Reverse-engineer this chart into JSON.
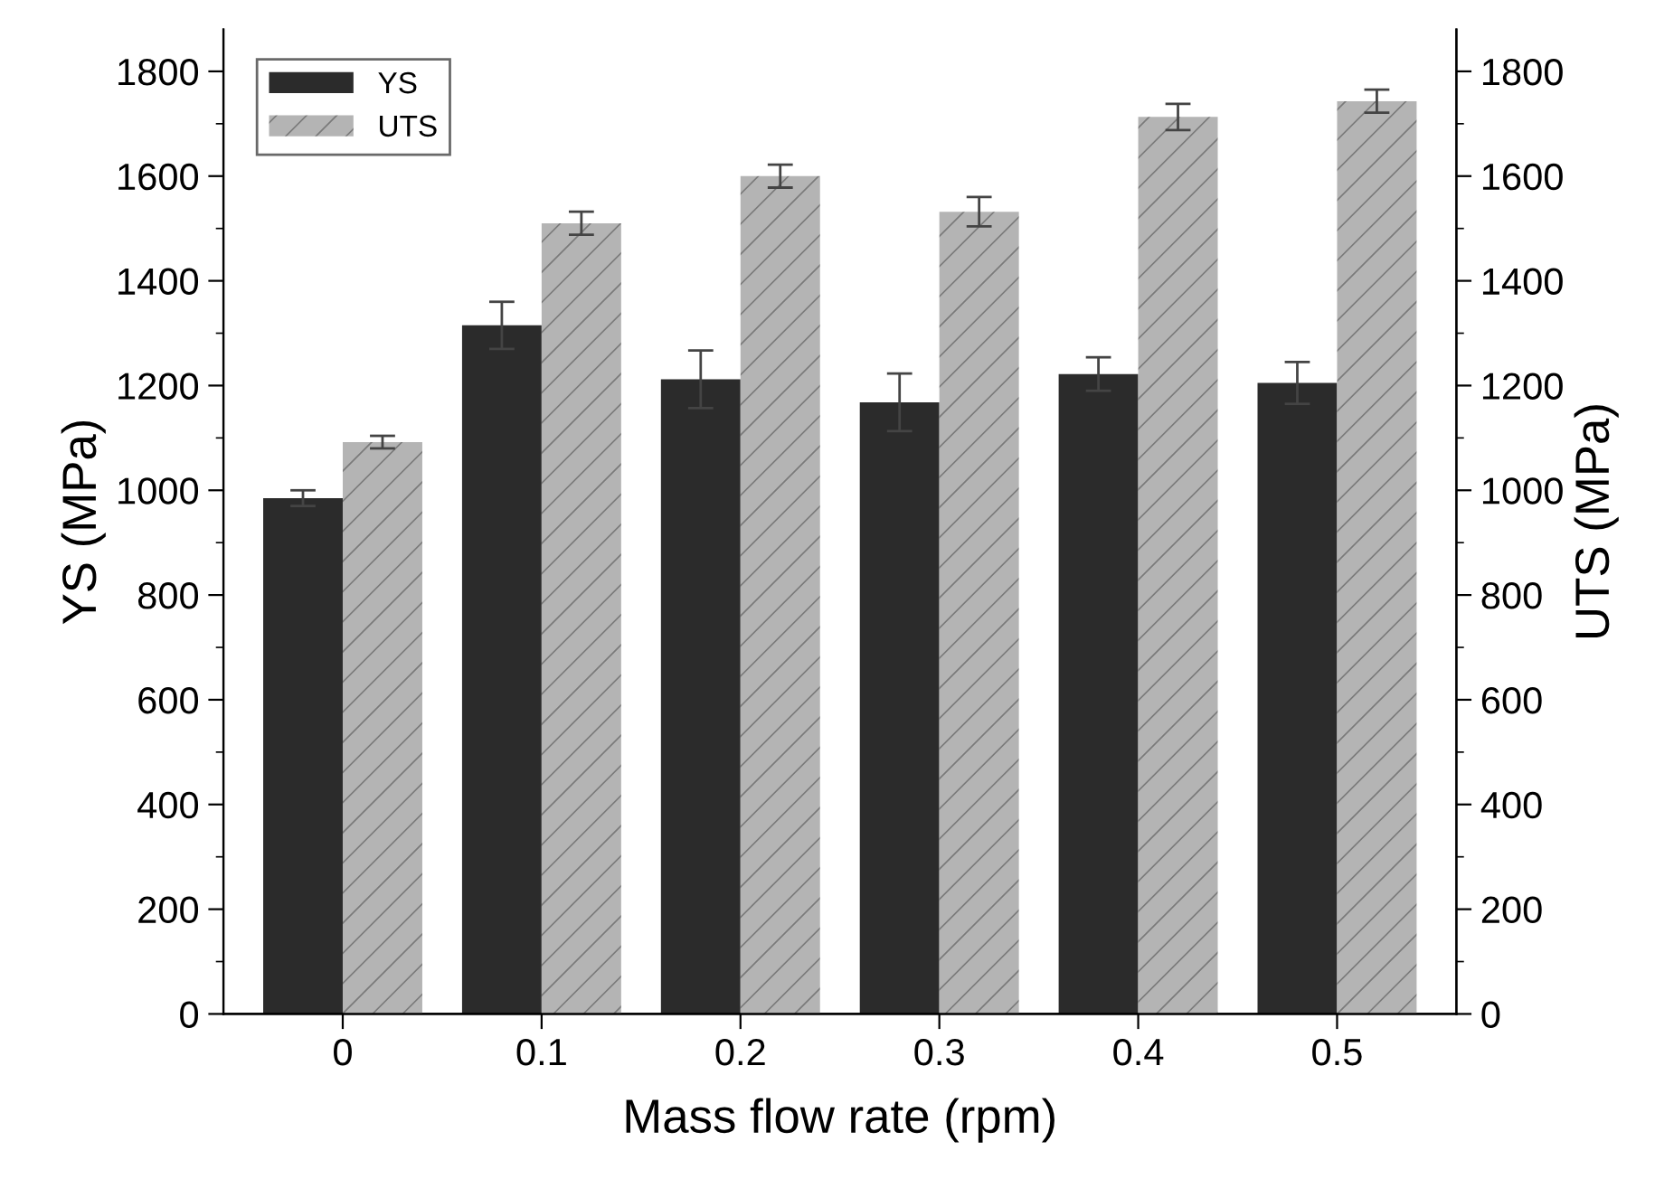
{
  "chart_data": {
    "type": "bar",
    "xlabel": "Mass flow rate (rpm)",
    "ylabel": "YS (MPa)",
    "y2label": "UTS (MPa)",
    "categories": [
      "0",
      "0.1",
      "0.2",
      "0.3",
      "0.4",
      "0.5"
    ],
    "series": [
      {
        "name": "YS",
        "color": "#2b2b2b",
        "values": [
          985,
          1315,
          1212,
          1168,
          1222,
          1205
        ],
        "errors": [
          15,
          45,
          55,
          55,
          32,
          40
        ]
      },
      {
        "name": "UTS",
        "color": "#b4b4b4",
        "axis": "y2",
        "values": [
          1092,
          1510,
          1600,
          1532,
          1713,
          1743
        ],
        "errors": [
          12,
          22,
          22,
          28,
          25,
          22
        ]
      }
    ],
    "ylim": [
      0,
      1880
    ],
    "yticks": [
      0,
      {
        "value": 100,
        "label": null
      },
      200,
      {
        "value": 300,
        "label": null
      },
      400,
      {
        "value": 500,
        "label": null
      },
      600,
      {
        "value": 700,
        "label": null
      },
      800,
      {
        "value": 900,
        "label": null
      },
      1000,
      {
        "value": 1100,
        "label": null
      },
      1200,
      {
        "value": 1300,
        "label": null
      },
      1400,
      {
        "value": 1500,
        "label": null
      },
      1600,
      {
        "value": 1700,
        "label": null
      },
      1800
    ],
    "y2lim": [
      0,
      1880
    ],
    "y2ticks": [
      0,
      {
        "value": 100,
        "label": null
      },
      200,
      {
        "value": 300,
        "label": null
      },
      400,
      {
        "value": 500,
        "label": null
      },
      600,
      {
        "value": 700,
        "label": null
      },
      800,
      {
        "value": 900,
        "label": null
      },
      1000,
      {
        "value": 1100,
        "label": null
      },
      1200,
      {
        "value": 1300,
        "label": null
      },
      1400,
      {
        "value": 1500,
        "label": null
      },
      1600,
      {
        "value": 1700,
        "label": null
      },
      1800
    ],
    "legend": "top left",
    "grid": false
  }
}
